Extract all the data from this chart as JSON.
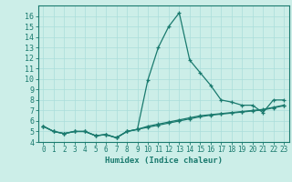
{
  "xlabel": "Humidex (Indice chaleur)",
  "background_color": "#cceee8",
  "line_color": "#1a7a6e",
  "grid_color": "#aaddda",
  "x_values": [
    0,
    1,
    2,
    3,
    4,
    5,
    6,
    7,
    8,
    9,
    10,
    11,
    12,
    13,
    14,
    15,
    16,
    17,
    18,
    19,
    20,
    21,
    22,
    23
  ],
  "line1_y": [
    5.5,
    5.0,
    4.8,
    5.0,
    5.0,
    4.6,
    4.7,
    4.4,
    5.0,
    5.2,
    9.9,
    13.0,
    15.0,
    16.3,
    11.8,
    10.6,
    9.4,
    8.0,
    7.8,
    7.5,
    7.5,
    6.8,
    8.0,
    8.0
  ],
  "line2_y": [
    5.5,
    5.0,
    4.8,
    5.0,
    5.0,
    4.6,
    4.7,
    4.4,
    5.0,
    5.2,
    5.5,
    5.7,
    5.9,
    6.1,
    6.3,
    6.5,
    6.6,
    6.7,
    6.8,
    6.9,
    7.0,
    7.1,
    7.3,
    7.5
  ],
  "line3_y": [
    5.5,
    5.0,
    4.8,
    5.0,
    5.0,
    4.6,
    4.7,
    4.4,
    5.0,
    5.2,
    5.4,
    5.6,
    5.8,
    6.0,
    6.2,
    6.4,
    6.55,
    6.65,
    6.75,
    6.85,
    6.95,
    7.05,
    7.25,
    7.45
  ],
  "ylim": [
    4,
    17
  ],
  "xlim": [
    -0.5,
    23.5
  ],
  "yticks": [
    4,
    5,
    6,
    7,
    8,
    9,
    10,
    11,
    12,
    13,
    14,
    15,
    16
  ],
  "xticks": [
    0,
    1,
    2,
    3,
    4,
    5,
    6,
    7,
    8,
    9,
    10,
    11,
    12,
    13,
    14,
    15,
    16,
    17,
    18,
    19,
    20,
    21,
    22,
    23
  ]
}
